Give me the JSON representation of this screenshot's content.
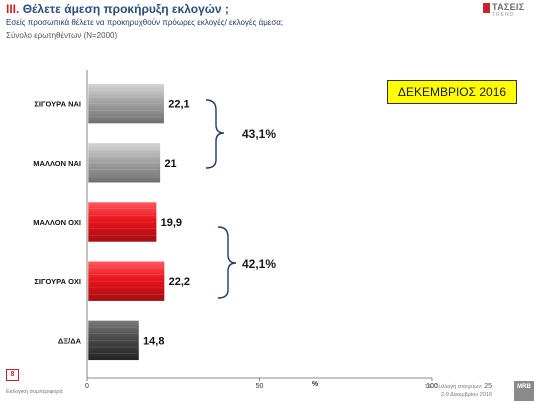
{
  "header": {
    "roman": "III.",
    "question": "Θέλετε άμεση προκήρυξη εκλογών ;",
    "subtitle": "Εσείς προσωπικά θέλετε να προκηρυχθούν πρόωρες εκλογές/ εκλογές άμεσα;",
    "base": "Σύνολο ερωτηθέντων (N=2000)"
  },
  "logo": {
    "name": "ΤΑΣΕΙΣ",
    "sub": "TREND"
  },
  "period_label": "ΔΕΚΕΜΒΡΙΟΣ 2016",
  "groups": [
    {
      "label": "43,1%",
      "color": "#1f3a66"
    },
    {
      "label": "42,1%",
      "color": "#1f3a66"
    }
  ],
  "footer": {
    "page": "8",
    "note": "Εκλογική συμπεριφορά",
    "source_line1": "Τ.Ε. Συλλογή στοιχείων:",
    "source_page": "25",
    "source_line2": "2-9 Δεκεμβρίου 2016",
    "mrb": "MRB"
  },
  "colors": {
    "gray_bar": "#9b9b9b",
    "red_bar": "#e8141b",
    "dark_bar": "#4a4a4a"
  },
  "chart_data": {
    "type": "bar",
    "orientation": "horizontal",
    "categories": [
      "ΣΙΓΟΥΡΑ ΝΑΙ",
      "ΜΑΛΛΟΝ ΝΑΙ",
      "ΜΑΛΛΟΝ ΟΧΙ",
      "ΣΙΓΟΥΡΑ ΟΧΙ",
      "ΔΞ/ΔΑ"
    ],
    "values": [
      22.1,
      21,
      19.9,
      22.2,
      14.8
    ],
    "value_labels": [
      "22,1",
      "21",
      "19,9",
      "22,2",
      "14,8"
    ],
    "bar_colors": [
      "#9b9b9b",
      "#9b9b9b",
      "#e8141b",
      "#e8141b",
      "#4a4a4a"
    ],
    "xlim": [
      0,
      100
    ],
    "xticks": [
      0,
      50,
      100
    ],
    "xtick_labels": [
      "0",
      "50",
      "100"
    ],
    "xlabel": "%",
    "grid": false
  }
}
